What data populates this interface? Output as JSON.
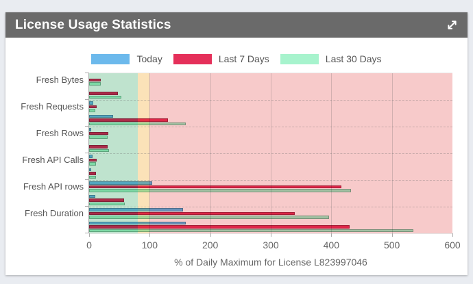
{
  "colors": {
    "page_background": "#E9ECF1",
    "panel_background": "#FFFFFF",
    "header_background": "#6A6A6A",
    "header_text": "#FFFFFF",
    "label_text": "#555555",
    "tick_text": "#666666"
  },
  "header": {
    "title": "License Usage Statistics"
  },
  "legend": [
    {
      "label": "Today",
      "color": "#6CB9EC"
    },
    {
      "label": "Last 7 Days",
      "color": "#E5305A"
    },
    {
      "label": "Last 30 Days",
      "color": "#A7F3CD"
    }
  ],
  "chart_data": {
    "type": "bar",
    "orientation": "horizontal",
    "title": "License Usage Statistics",
    "xlabel": "% of Daily Maximum for License L823997046",
    "ylabel": "",
    "xlim": [
      0,
      600
    ],
    "xticks": [
      0,
      100,
      200,
      300,
      400,
      500,
      600
    ],
    "grid": true,
    "legend_position": "top",
    "zones": [
      {
        "name": "safe",
        "from": 0,
        "to": 80,
        "color": "#BFE3CE"
      },
      {
        "name": "warning",
        "from": 80,
        "to": 100,
        "color": "#FBE2B8"
      },
      {
        "name": "critical",
        "from": 100,
        "to": 600,
        "color": "#F7CACA"
      }
    ],
    "categories": [
      "Fresh Bytes",
      "",
      "Fresh Requests",
      "",
      "Fresh Rows",
      "",
      "Fresh API Calls",
      "",
      "Fresh API rows",
      "",
      "Fresh Duration",
      ""
    ],
    "series": [
      {
        "name": "Today",
        "color": "#6CB9EC",
        "values": [
          0,
          0,
          7,
          40,
          3,
          0,
          6,
          3,
          104,
          10,
          155,
          160
        ]
      },
      {
        "name": "Last 7 Days",
        "color": "#E5305A",
        "values": [
          19,
          48,
          12,
          130,
          32,
          31,
          12,
          11,
          417,
          58,
          340,
          430
        ]
      },
      {
        "name": "Last 30 Days",
        "color": "#A7F3CD",
        "values": [
          19,
          53,
          10,
          160,
          31,
          33,
          11,
          11,
          433,
          59,
          396,
          536
        ]
      }
    ]
  }
}
